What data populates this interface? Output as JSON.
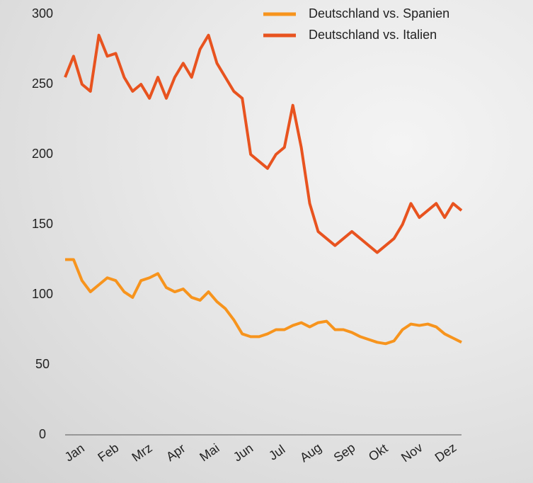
{
  "chart_data": {
    "type": "line",
    "categories": [
      "Jan",
      null,
      null,
      null,
      "Feb",
      null,
      null,
      null,
      "Mrz",
      null,
      null,
      null,
      "Apr",
      null,
      null,
      null,
      "Mai",
      null,
      null,
      null,
      "Jun",
      null,
      null,
      null,
      "Jul",
      null,
      null,
      null,
      "Aug",
      null,
      null,
      null,
      "Sep",
      null,
      null,
      null,
      "Okt",
      null,
      null,
      null,
      "Nov",
      null,
      null,
      null,
      "Dez",
      null,
      null,
      null
    ],
    "series": [
      {
        "name": "Deutschland vs. Spanien",
        "color": "#f7941d",
        "values": [
          125,
          125,
          110,
          102,
          107,
          112,
          110,
          102,
          98,
          110,
          112,
          115,
          105,
          102,
          104,
          98,
          96,
          102,
          95,
          90,
          82,
          72,
          70,
          70,
          72,
          75,
          75,
          78,
          80,
          77,
          80,
          81,
          75,
          75,
          73,
          70,
          68,
          66,
          65,
          67,
          75,
          79,
          78,
          79,
          77,
          72,
          69,
          66
        ]
      },
      {
        "name": "Deutschland vs. Italien",
        "color": "#e8531f",
        "values": [
          255,
          270,
          250,
          245,
          285,
          270,
          272,
          255,
          245,
          250,
          240,
          255,
          240,
          255,
          265,
          255,
          275,
          285,
          265,
          255,
          245,
          240,
          200,
          195,
          190,
          200,
          205,
          235,
          205,
          165,
          145,
          140,
          135,
          140,
          145,
          140,
          135,
          130,
          135,
          140,
          150,
          165,
          155,
          160,
          165,
          155,
          165,
          160
        ]
      }
    ],
    "ylim": [
      0,
      300
    ],
    "yticks": [
      0,
      50,
      100,
      150,
      200,
      250,
      300
    ],
    "grid": false,
    "legend": "top-right"
  }
}
